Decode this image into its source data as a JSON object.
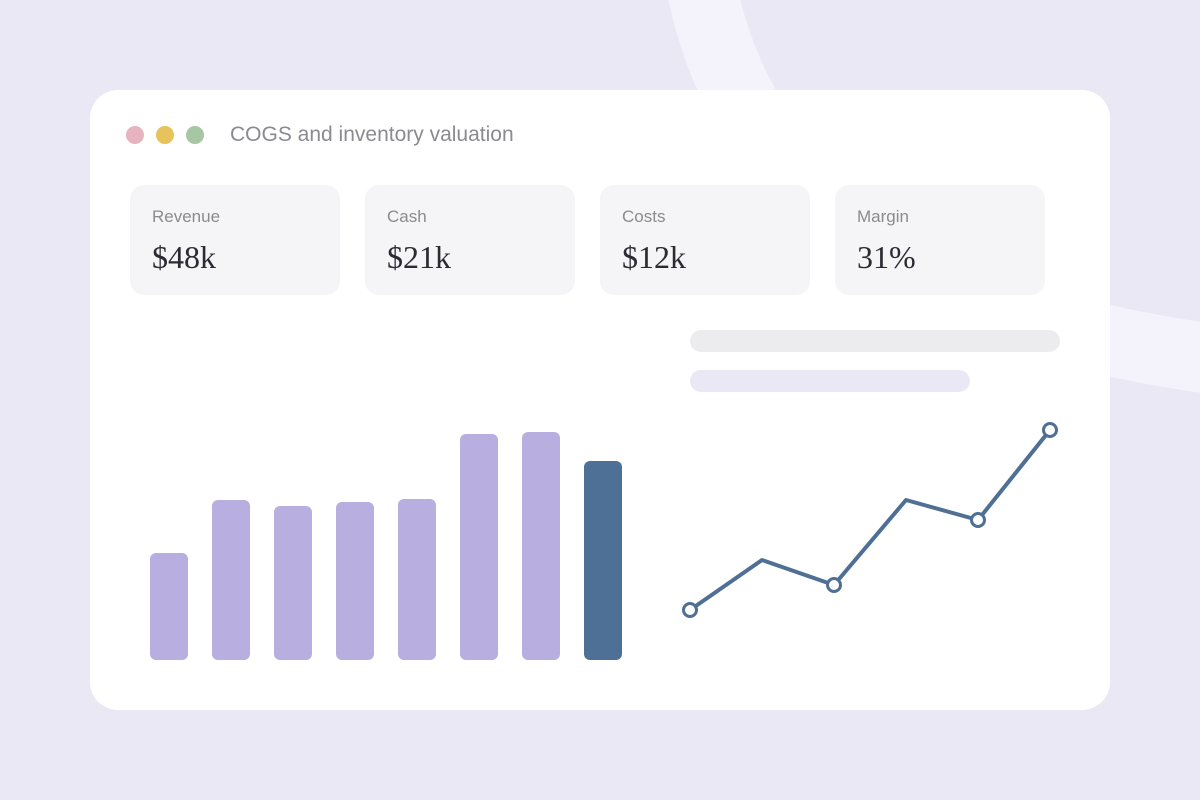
{
  "window": {
    "title": "COGS and inventory valuation",
    "dots": [
      "#e6b4c0",
      "#e8c25a",
      "#a7c7a4"
    ]
  },
  "stats": [
    {
      "label": "Revenue",
      "value": "$48k"
    },
    {
      "label": "Cash",
      "value": "$21k"
    },
    {
      "label": "Costs",
      "value": "$12k"
    },
    {
      "label": "Margin",
      "value": "31%"
    }
  ],
  "colors": {
    "background": "#ebe8f6",
    "bar": "#b8aee0",
    "bar_highlight": "#4f7096",
    "line": "#4f6f95"
  },
  "chart_data": [
    {
      "type": "bar",
      "values": [
        107,
        160,
        154,
        158,
        161,
        226,
        228,
        199
      ],
      "highlight_index": 7,
      "ylim": [
        0,
        240
      ]
    },
    {
      "type": "line",
      "values": [
        50,
        100,
        75,
        160,
        140,
        230
      ],
      "markers": [
        true,
        false,
        true,
        false,
        true,
        true
      ],
      "ylim": [
        0,
        240
      ]
    }
  ]
}
